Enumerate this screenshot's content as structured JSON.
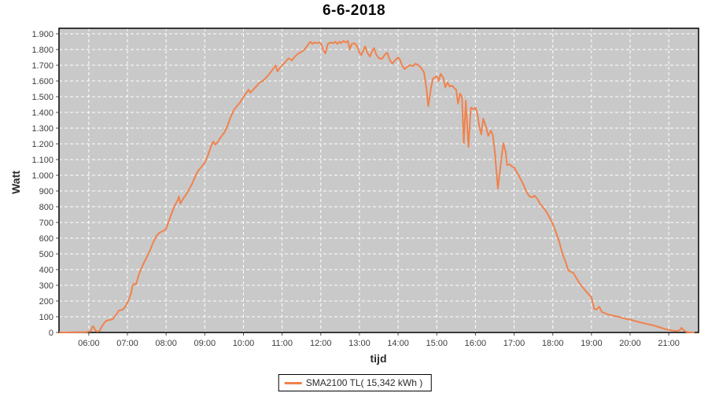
{
  "chart_data": {
    "type": "line",
    "title": "6-6-2018",
    "xlabel": "tijd",
    "ylabel": "Watt",
    "x_unit": "hour_of_day_decimal",
    "xlim": [
      5.23,
      21.77
    ],
    "ylim": [
      0,
      1935
    ],
    "grid": true,
    "grid_style": "white-dashed",
    "legend_position": "bottom-center",
    "plot_bg_color": "#c9c9c9",
    "grid_color": "#ffffff",
    "border_color": "#000000",
    "tick_color": "#555555",
    "tick_text_color": "#3d3d3d",
    "x_ticks": [
      {
        "v": 6,
        "label": "06:00"
      },
      {
        "v": 7,
        "label": "07:00"
      },
      {
        "v": 8,
        "label": "08:00"
      },
      {
        "v": 9,
        "label": "09:00"
      },
      {
        "v": 10,
        "label": "10:00"
      },
      {
        "v": 11,
        "label": "11:00"
      },
      {
        "v": 12,
        "label": "12:00"
      },
      {
        "v": 13,
        "label": "13:00"
      },
      {
        "v": 14,
        "label": "14:00"
      },
      {
        "v": 15,
        "label": "15:00"
      },
      {
        "v": 16,
        "label": "16:00"
      },
      {
        "v": 17,
        "label": "17:00"
      },
      {
        "v": 18,
        "label": "18:00"
      },
      {
        "v": 19,
        "label": "19:00"
      },
      {
        "v": 20,
        "label": "20:00"
      },
      {
        "v": 21,
        "label": "21:00"
      }
    ],
    "y_ticks": [
      {
        "v": 0,
        "label": "0"
      },
      {
        "v": 100,
        "label": "100"
      },
      {
        "v": 200,
        "label": "200"
      },
      {
        "v": 300,
        "label": "300"
      },
      {
        "v": 400,
        "label": "400"
      },
      {
        "v": 500,
        "label": "500"
      },
      {
        "v": 600,
        "label": "600"
      },
      {
        "v": 700,
        "label": "700"
      },
      {
        "v": 800,
        "label": "800"
      },
      {
        "v": 900,
        "label": "900"
      },
      {
        "v": 1000,
        "label": "1.000"
      },
      {
        "v": 1100,
        "label": "1.100"
      },
      {
        "v": 1200,
        "label": "1.200"
      },
      {
        "v": 1300,
        "label": "1.300"
      },
      {
        "v": 1400,
        "label": "1.400"
      },
      {
        "v": 1500,
        "label": "1.500"
      },
      {
        "v": 1600,
        "label": "1.600"
      },
      {
        "v": 1700,
        "label": "1.700"
      },
      {
        "v": 1800,
        "label": "1.800"
      },
      {
        "v": 1900,
        "label": "1.900"
      }
    ],
    "series": [
      {
        "name": "SMA2100 TL( 15,342 kWh )",
        "color": "#f0824d",
        "points": [
          [
            5.25,
            0
          ],
          [
            5.4,
            0
          ],
          [
            5.6,
            1
          ],
          [
            5.8,
            2
          ],
          [
            5.95,
            3
          ],
          [
            6.05,
            8
          ],
          [
            6.1,
            40
          ],
          [
            6.13,
            34
          ],
          [
            6.17,
            12
          ],
          [
            6.22,
            6
          ],
          [
            6.28,
            10
          ],
          [
            6.35,
            45
          ],
          [
            6.45,
            75
          ],
          [
            6.55,
            80
          ],
          [
            6.62,
            85
          ],
          [
            6.7,
            110
          ],
          [
            6.78,
            140
          ],
          [
            6.87,
            145
          ],
          [
            6.95,
            165
          ],
          [
            7.0,
            190
          ],
          [
            7.05,
            220
          ],
          [
            7.1,
            255
          ],
          [
            7.13,
            300
          ],
          [
            7.18,
            310
          ],
          [
            7.22,
            305
          ],
          [
            7.3,
            370
          ],
          [
            7.4,
            430
          ],
          [
            7.5,
            480
          ],
          [
            7.58,
            520
          ],
          [
            7.67,
            575
          ],
          [
            7.75,
            615
          ],
          [
            7.83,
            635
          ],
          [
            7.92,
            645
          ],
          [
            8.0,
            660
          ],
          [
            8.08,
            715
          ],
          [
            8.17,
            775
          ],
          [
            8.25,
            820
          ],
          [
            8.3,
            840
          ],
          [
            8.33,
            865
          ],
          [
            8.37,
            820
          ],
          [
            8.45,
            855
          ],
          [
            8.5,
            870
          ],
          [
            8.58,
            905
          ],
          [
            8.67,
            945
          ],
          [
            8.75,
            990
          ],
          [
            8.83,
            1030
          ],
          [
            8.92,
            1055
          ],
          [
            9.0,
            1080
          ],
          [
            9.08,
            1125
          ],
          [
            9.17,
            1190
          ],
          [
            9.22,
            1215
          ],
          [
            9.27,
            1195
          ],
          [
            9.33,
            1210
          ],
          [
            9.42,
            1245
          ],
          [
            9.5,
            1270
          ],
          [
            9.58,
            1310
          ],
          [
            9.67,
            1370
          ],
          [
            9.75,
            1415
          ],
          [
            9.83,
            1440
          ],
          [
            9.92,
            1465
          ],
          [
            10.0,
            1500
          ],
          [
            10.08,
            1525
          ],
          [
            10.13,
            1545
          ],
          [
            10.18,
            1525
          ],
          [
            10.25,
            1545
          ],
          [
            10.33,
            1565
          ],
          [
            10.42,
            1590
          ],
          [
            10.5,
            1600
          ],
          [
            10.58,
            1620
          ],
          [
            10.67,
            1645
          ],
          [
            10.75,
            1670
          ],
          [
            10.83,
            1700
          ],
          [
            10.88,
            1660
          ],
          [
            10.93,
            1680
          ],
          [
            11.0,
            1700
          ],
          [
            11.08,
            1720
          ],
          [
            11.17,
            1745
          ],
          [
            11.25,
            1730
          ],
          [
            11.33,
            1755
          ],
          [
            11.42,
            1775
          ],
          [
            11.5,
            1785
          ],
          [
            11.58,
            1800
          ],
          [
            11.67,
            1830
          ],
          [
            11.73,
            1850
          ],
          [
            11.78,
            1835
          ],
          [
            11.83,
            1845
          ],
          [
            11.9,
            1840
          ],
          [
            11.95,
            1845
          ],
          [
            12.0,
            1840
          ],
          [
            12.07,
            1795
          ],
          [
            12.12,
            1775
          ],
          [
            12.18,
            1835
          ],
          [
            12.25,
            1845
          ],
          [
            12.32,
            1840
          ],
          [
            12.38,
            1850
          ],
          [
            12.43,
            1835
          ],
          [
            12.48,
            1850
          ],
          [
            12.53,
            1840
          ],
          [
            12.58,
            1855
          ],
          [
            12.65,
            1845
          ],
          [
            12.7,
            1855
          ],
          [
            12.75,
            1800
          ],
          [
            12.8,
            1835
          ],
          [
            12.87,
            1840
          ],
          [
            12.93,
            1825
          ],
          [
            13.0,
            1780
          ],
          [
            13.05,
            1765
          ],
          [
            13.1,
            1795
          ],
          [
            13.15,
            1820
          ],
          [
            13.2,
            1780
          ],
          [
            13.27,
            1755
          ],
          [
            13.33,
            1790
          ],
          [
            13.38,
            1810
          ],
          [
            13.43,
            1770
          ],
          [
            13.5,
            1745
          ],
          [
            13.58,
            1740
          ],
          [
            13.65,
            1765
          ],
          [
            13.72,
            1780
          ],
          [
            13.78,
            1735
          ],
          [
            13.85,
            1710
          ],
          [
            13.92,
            1730
          ],
          [
            14.0,
            1750
          ],
          [
            14.05,
            1735
          ],
          [
            14.1,
            1700
          ],
          [
            14.17,
            1675
          ],
          [
            14.23,
            1690
          ],
          [
            14.3,
            1700
          ],
          [
            14.38,
            1695
          ],
          [
            14.45,
            1710
          ],
          [
            14.53,
            1700
          ],
          [
            14.6,
            1680
          ],
          [
            14.67,
            1655
          ],
          [
            14.73,
            1555
          ],
          [
            14.78,
            1440
          ],
          [
            14.85,
            1555
          ],
          [
            14.9,
            1615
          ],
          [
            15.0,
            1630
          ],
          [
            15.05,
            1600
          ],
          [
            15.1,
            1645
          ],
          [
            15.17,
            1620
          ],
          [
            15.22,
            1560
          ],
          [
            15.28,
            1590
          ],
          [
            15.33,
            1565
          ],
          [
            15.4,
            1570
          ],
          [
            15.45,
            1555
          ],
          [
            15.5,
            1545
          ],
          [
            15.55,
            1455
          ],
          [
            15.6,
            1520
          ],
          [
            15.65,
            1500
          ],
          [
            15.7,
            1205
          ],
          [
            15.75,
            1475
          ],
          [
            15.82,
            1180
          ],
          [
            15.88,
            1430
          ],
          [
            15.95,
            1420
          ],
          [
            16.0,
            1430
          ],
          [
            16.05,
            1395
          ],
          [
            16.1,
            1310
          ],
          [
            16.15,
            1260
          ],
          [
            16.2,
            1360
          ],
          [
            16.27,
            1310
          ],
          [
            16.33,
            1250
          ],
          [
            16.4,
            1285
          ],
          [
            16.45,
            1255
          ],
          [
            16.5,
            1150
          ],
          [
            16.58,
            915
          ],
          [
            16.65,
            1060
          ],
          [
            16.72,
            1205
          ],
          [
            16.78,
            1150
          ],
          [
            16.82,
            1065
          ],
          [
            16.88,
            1070
          ],
          [
            16.95,
            1055
          ],
          [
            17.0,
            1050
          ],
          [
            17.08,
            1015
          ],
          [
            17.17,
            975
          ],
          [
            17.25,
            935
          ],
          [
            17.33,
            890
          ],
          [
            17.4,
            865
          ],
          [
            17.47,
            860
          ],
          [
            17.53,
            870
          ],
          [
            17.6,
            850
          ],
          [
            17.67,
            820
          ],
          [
            17.75,
            795
          ],
          [
            17.83,
            770
          ],
          [
            17.92,
            730
          ],
          [
            18.0,
            690
          ],
          [
            18.08,
            640
          ],
          [
            18.17,
            575
          ],
          [
            18.25,
            500
          ],
          [
            18.33,
            450
          ],
          [
            18.4,
            395
          ],
          [
            18.47,
            385
          ],
          [
            18.53,
            380
          ],
          [
            18.6,
            350
          ],
          [
            18.7,
            310
          ],
          [
            18.8,
            280
          ],
          [
            18.9,
            250
          ],
          [
            19.0,
            225
          ],
          [
            19.07,
            150
          ],
          [
            19.13,
            145
          ],
          [
            19.2,
            165
          ],
          [
            19.27,
            130
          ],
          [
            19.33,
            125
          ],
          [
            19.42,
            115
          ],
          [
            19.5,
            110
          ],
          [
            19.6,
            105
          ],
          [
            19.7,
            100
          ],
          [
            19.8,
            92
          ],
          [
            19.9,
            86
          ],
          [
            20.0,
            82
          ],
          [
            20.1,
            75
          ],
          [
            20.2,
            68
          ],
          [
            20.3,
            62
          ],
          [
            20.42,
            55
          ],
          [
            20.55,
            48
          ],
          [
            20.67,
            40
          ],
          [
            20.8,
            30
          ],
          [
            20.9,
            22
          ],
          [
            21.0,
            16
          ],
          [
            21.1,
            12
          ],
          [
            21.2,
            10
          ],
          [
            21.28,
            14
          ],
          [
            21.33,
            30
          ],
          [
            21.38,
            15
          ],
          [
            21.45,
            4
          ],
          [
            21.55,
            1
          ],
          [
            21.65,
            0
          ]
        ]
      }
    ]
  }
}
